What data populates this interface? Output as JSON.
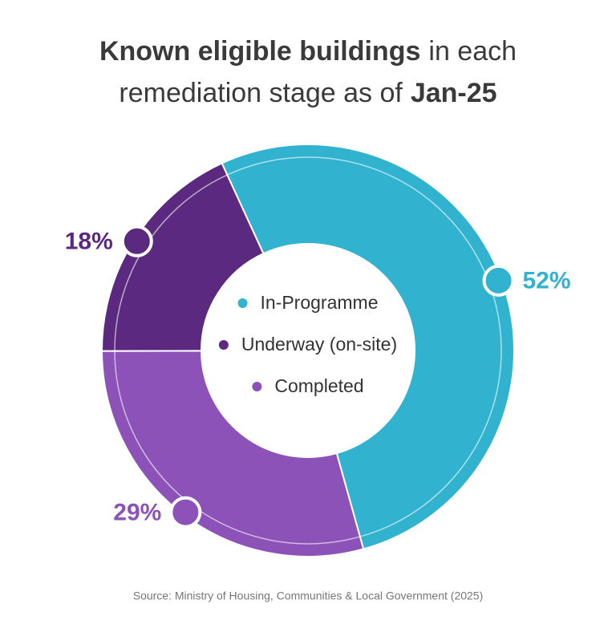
{
  "chart_data": {
    "type": "donut",
    "title": [
      [
        "Known eligible buildings",
        "in each"
      ],
      [
        "remediation stage as of",
        "Jan-25"
      ]
    ],
    "title_bold": [
      [
        true,
        false
      ],
      [
        false,
        true
      ]
    ],
    "categories": [
      "In-Programme",
      "Underway (on-site)",
      "Completed"
    ],
    "values": [
      52,
      18,
      29
    ],
    "value_labels": [
      "52%",
      "18%",
      "29%"
    ],
    "colors": [
      "#31b2cf",
      "#5b2a80",
      "#8d52b8"
    ],
    "source": "Source: Ministry of Housing, Communities & Local Government (2025)"
  }
}
